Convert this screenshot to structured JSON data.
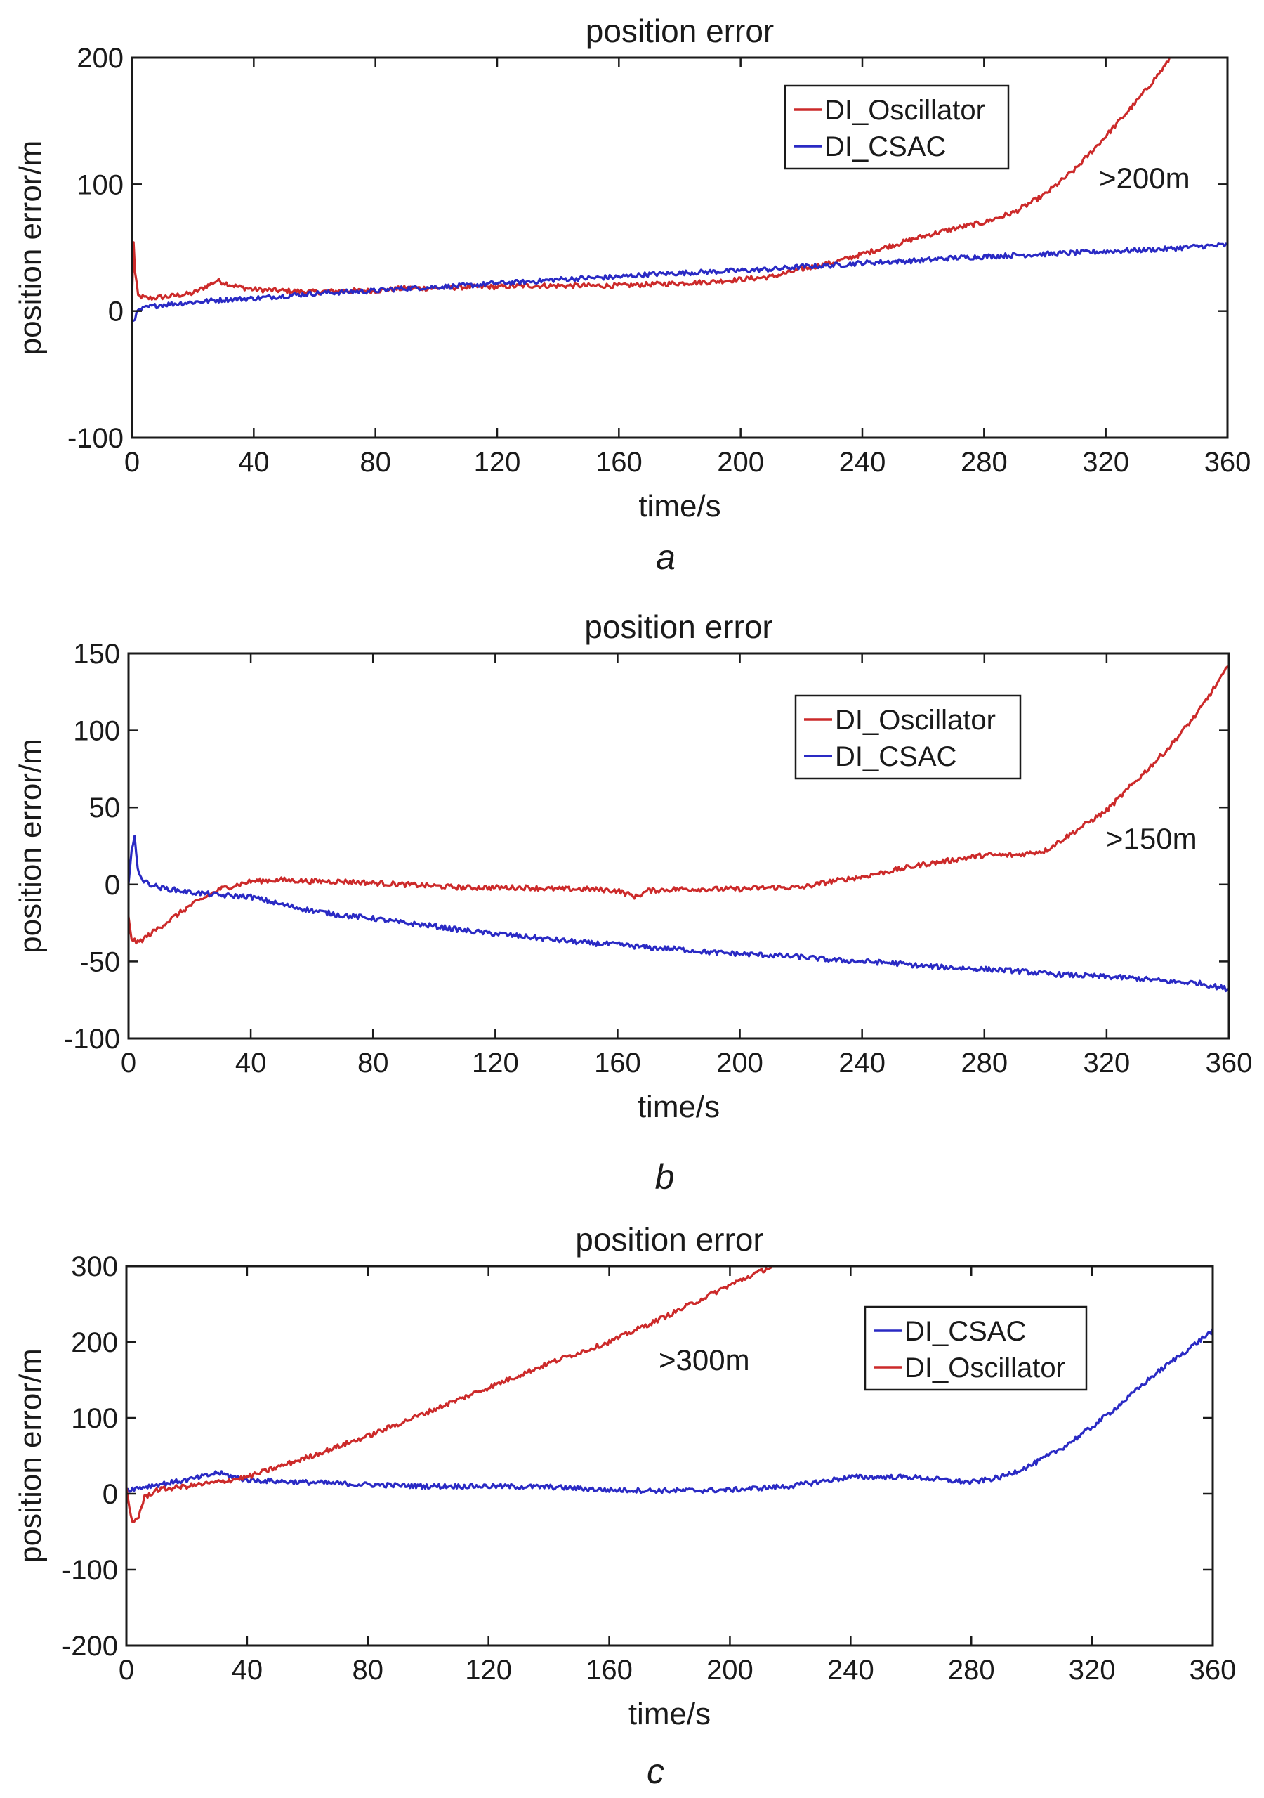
{
  "colors": {
    "DI_Oscillator": "#cc2a2a",
    "DI_CSAC": "#2a2ac4",
    "axis": "#1a1a1a"
  },
  "chart_data": [
    {
      "type": "line",
      "panel_label": "a",
      "title": "position error",
      "xlabel": "time/s",
      "ylabel": "position error/m",
      "xlim": [
        0,
        360
      ],
      "ylim": [
        -100,
        200
      ],
      "xticks": [
        0,
        40,
        80,
        120,
        160,
        200,
        240,
        280,
        320,
        360
      ],
      "yticks": [
        -100,
        0,
        100,
        200
      ],
      "grid": false,
      "legend_position": "top-right",
      "legend": [
        "DI_Oscillator",
        "DI_CSAC"
      ],
      "annotation": ">200m",
      "series": [
        {
          "name": "DI_Oscillator",
          "color_key": "DI_Oscillator",
          "x": [
            0,
            0.5,
            1,
            2,
            5,
            10,
            20,
            28,
            35,
            40,
            50,
            60,
            70,
            80,
            90,
            100,
            110,
            120,
            130,
            140,
            150,
            160,
            170,
            180,
            190,
            200,
            210,
            220,
            230,
            240,
            250,
            260,
            270,
            280,
            290,
            300,
            310,
            320,
            330,
            340,
            341
          ],
          "y": [
            10,
            55,
            30,
            12,
            10,
            11,
            14,
            24,
            19,
            17,
            16,
            15,
            16,
            16,
            18,
            18,
            19,
            19,
            20,
            20,
            20,
            20,
            21,
            22,
            23,
            25,
            27,
            33,
            38,
            45,
            52,
            59,
            65,
            70,
            78,
            92,
            112,
            138,
            165,
            195,
            200
          ]
        },
        {
          "name": "DI_CSAC",
          "color_key": "DI_CSAC",
          "x": [
            0,
            1,
            2,
            5,
            10,
            20,
            30,
            40,
            50,
            60,
            70,
            80,
            90,
            100,
            110,
            120,
            130,
            140,
            150,
            160,
            170,
            180,
            190,
            200,
            210,
            220,
            230,
            240,
            250,
            260,
            270,
            280,
            290,
            300,
            310,
            320,
            330,
            340,
            350,
            360
          ],
          "y": [
            -8,
            -5,
            0,
            3,
            5,
            7,
            9,
            10,
            12,
            14,
            15,
            16,
            18,
            19,
            20,
            22,
            23,
            25,
            26,
            27,
            29,
            30,
            31,
            32,
            33,
            35,
            36,
            38,
            39,
            40,
            42,
            43,
            44,
            45,
            46,
            47,
            48,
            49,
            51,
            52
          ]
        }
      ]
    },
    {
      "type": "line",
      "panel_label": "b",
      "title": "position error",
      "xlabel": "time/s",
      "ylabel": "position error/m",
      "xlim": [
        0,
        360
      ],
      "ylim": [
        -100,
        150
      ],
      "xticks": [
        0,
        40,
        80,
        120,
        160,
        200,
        240,
        280,
        320,
        360
      ],
      "yticks": [
        -100,
        -50,
        0,
        50,
        100,
        150
      ],
      "grid": false,
      "legend_position": "top-right",
      "legend": [
        "DI_Oscillator",
        "DI_CSAC"
      ],
      "annotation": ">150m",
      "series": [
        {
          "name": "DI_Oscillator",
          "color_key": "DI_Oscillator",
          "x": [
            0,
            1,
            3,
            10,
            20,
            30,
            40,
            50,
            60,
            70,
            80,
            90,
            100,
            110,
            120,
            130,
            140,
            150,
            160,
            166,
            170,
            180,
            190,
            200,
            210,
            220,
            230,
            240,
            250,
            260,
            270,
            280,
            290,
            300,
            310,
            320,
            330,
            340,
            350,
            360
          ],
          "y": [
            -22,
            -35,
            -38,
            -28,
            -14,
            -3,
            2,
            3,
            2,
            2,
            1,
            0,
            -1,
            -2,
            -2,
            -2,
            -3,
            -3,
            -4,
            -8,
            -4,
            -3,
            -3,
            -3,
            -2,
            -2,
            2,
            5,
            9,
            13,
            16,
            19,
            19,
            22,
            35,
            48,
            68,
            88,
            112,
            142
          ]
        },
        {
          "name": "DI_CSAC",
          "color_key": "DI_CSAC",
          "x": [
            0,
            1,
            2,
            3,
            5,
            10,
            20,
            30,
            40,
            50,
            60,
            70,
            80,
            90,
            100,
            110,
            120,
            130,
            140,
            150,
            160,
            170,
            180,
            190,
            200,
            210,
            220,
            230,
            240,
            250,
            260,
            270,
            280,
            290,
            300,
            310,
            320,
            330,
            340,
            350,
            360
          ],
          "y": [
            2,
            22,
            30,
            10,
            2,
            -2,
            -5,
            -7,
            -8,
            -13,
            -17,
            -20,
            -22,
            -25,
            -27,
            -30,
            -32,
            -34,
            -36,
            -38,
            -39,
            -41,
            -42,
            -44,
            -45,
            -46,
            -47,
            -49,
            -50,
            -51,
            -53,
            -54,
            -55,
            -56,
            -58,
            -59,
            -60,
            -61,
            -63,
            -64,
            -68
          ]
        }
      ]
    },
    {
      "type": "line",
      "panel_label": "c",
      "title": "position error",
      "xlabel": "time/s",
      "ylabel": "position error/m",
      "xlim": [
        0,
        360
      ],
      "ylim": [
        -200,
        300
      ],
      "xticks": [
        0,
        40,
        80,
        120,
        160,
        200,
        240,
        280,
        320,
        360
      ],
      "yticks": [
        -200,
        -100,
        0,
        100,
        200,
        300
      ],
      "grid": false,
      "legend_position": "top-right",
      "legend": [
        "DI_CSAC",
        "DI_Oscillator"
      ],
      "annotation": ">300m",
      "series": [
        {
          "name": "DI_CSAC",
          "color_key": "DI_CSAC",
          "x": [
            0,
            10,
            20,
            28,
            30,
            40,
            60,
            80,
            100,
            120,
            140,
            160,
            180,
            200,
            220,
            240,
            260,
            280,
            290,
            300,
            310,
            320,
            330,
            340,
            350,
            360
          ],
          "y": [
            5,
            12,
            18,
            25,
            28,
            18,
            15,
            12,
            10,
            10,
            9,
            5,
            4,
            5,
            10,
            22,
            22,
            15,
            22,
            38,
            60,
            88,
            120,
            155,
            185,
            215
          ]
        },
        {
          "name": "DI_Oscillator",
          "color_key": "DI_Oscillator",
          "x": [
            0,
            1,
            2,
            4,
            6,
            10,
            20,
            30,
            40,
            60,
            80,
            100,
            120,
            140,
            160,
            180,
            200,
            214
          ],
          "y": [
            5,
            -20,
            -38,
            -30,
            -5,
            5,
            10,
            15,
            22,
            48,
            76,
            108,
            140,
            172,
            200,
            236,
            275,
            300
          ]
        }
      ]
    }
  ]
}
